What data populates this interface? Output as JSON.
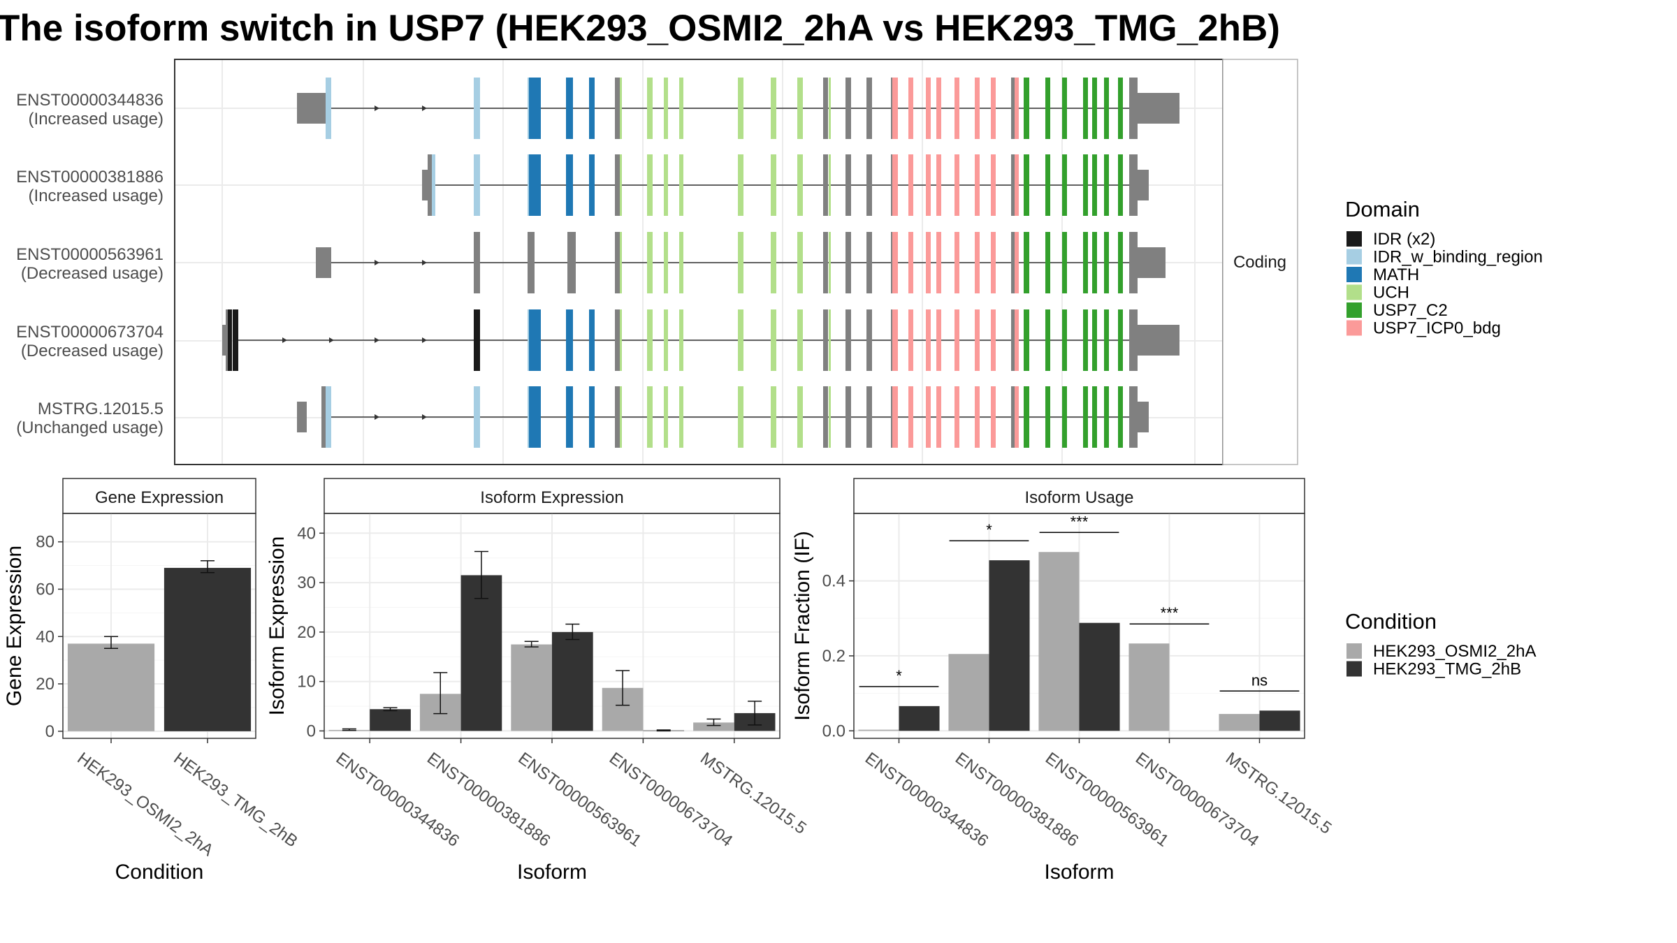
{
  "title": "The isoform switch in USP7 (HEK293_OSMI2_2hA vs HEK293_TMG_2hB)",
  "colors": {
    "IDR (x2)": "#1a1a1a",
    "IDR_w_binding_region": "#a6cee3",
    "MATH": "#1f78b4",
    "UCH": "#b2df8a",
    "USP7_C2": "#33a02c",
    "USP7_ICP0_bdg": "#fb9a99",
    "none": "#808080",
    "HEK293_OSMI2_2hA": "#a9a9a9",
    "HEK293_TMG_2hB": "#333333"
  },
  "structure_panel": {
    "strip_label": "Coding",
    "isoforms": [
      {
        "id": "ENST00000344836",
        "usage": "(Increased usage)"
      },
      {
        "id": "ENST00000381886",
        "usage": "(Increased usage)"
      },
      {
        "id": "ENST00000563961",
        "usage": "(Decreased usage)"
      },
      {
        "id": "ENST00000673704",
        "usage": "(Decreased usage)"
      },
      {
        "id": "MSTRG.12015.5",
        "usage": "(Unchanged usage)"
      }
    ]
  },
  "legend_domain": {
    "title": "Domain",
    "items": [
      "IDR (x2)",
      "IDR_w_binding_region",
      "MATH",
      "UCH",
      "USP7_C2",
      "USP7_ICP0_bdg"
    ]
  },
  "legend_condition": {
    "title": "Condition",
    "items": [
      "HEK293_OSMI2_2hA",
      "HEK293_TMG_2hB"
    ]
  },
  "chart_data": [
    {
      "type": "bar",
      "strip": "Gene Expression",
      "xlabel": "Condition",
      "ylabel": "Gene Expression",
      "categories": [
        "HEK293_OSMI2_2hA",
        "HEK293_TMG_2hB"
      ],
      "values": [
        37,
        69
      ],
      "errors": [
        [
          35,
          40
        ],
        [
          67,
          72
        ]
      ],
      "ylim": [
        -3,
        92
      ],
      "yticks": [
        0,
        20,
        40,
        60,
        80
      ]
    },
    {
      "type": "bar",
      "strip": "Isoform Expression",
      "xlabel": "Isoform",
      "ylabel": "Isoform Expression",
      "categories": [
        "ENST00000344836",
        "ENST00000381886",
        "ENST00000563961",
        "ENST00000673704",
        "MSTRG.12015.5"
      ],
      "series": [
        {
          "name": "HEK293_OSMI2_2hA",
          "values": [
            0.2,
            7.5,
            17.5,
            8.7,
            1.7
          ],
          "errors": [
            [
              0.1,
              0.4
            ],
            [
              3.5,
              11.8
            ],
            [
              17.0,
              18.1
            ],
            [
              5.2,
              12.2
            ],
            [
              1.1,
              2.4
            ]
          ]
        },
        {
          "name": "HEK293_TMG_2hB",
          "values": [
            4.4,
            31.5,
            20.0,
            0.1,
            3.6
          ],
          "errors": [
            [
              4.1,
              4.7
            ],
            [
              26.8,
              36.3
            ],
            [
              18.5,
              21.6
            ],
            [
              0.0,
              0.2
            ],
            [
              1.2,
              6.0
            ]
          ]
        }
      ],
      "ylim": [
        -1.5,
        44
      ],
      "yticks": [
        0,
        10,
        20,
        30,
        40
      ]
    },
    {
      "type": "bar",
      "strip": "Isoform Usage",
      "xlabel": "Isoform",
      "ylabel": "Isoform Fraction (IF)",
      "categories": [
        "ENST00000344836",
        "ENST00000381886",
        "ENST00000563961",
        "ENST00000673704",
        "MSTRG.12015.5"
      ],
      "series": [
        {
          "name": "HEK293_OSMI2_2hA",
          "values": [
            0.003,
            0.205,
            0.477,
            0.233,
            0.045
          ]
        },
        {
          "name": "HEK293_TMG_2hB",
          "values": [
            0.066,
            0.455,
            0.288,
            0.0,
            0.054
          ]
        }
      ],
      "significance": [
        "*",
        "*",
        "***",
        "***",
        "ns"
      ],
      "ylim": [
        -0.02,
        0.58
      ],
      "yticks": [
        0.0,
        0.2,
        0.4
      ],
      "ytick_labels": [
        "0.0",
        "0.2",
        "0.4"
      ]
    }
  ]
}
